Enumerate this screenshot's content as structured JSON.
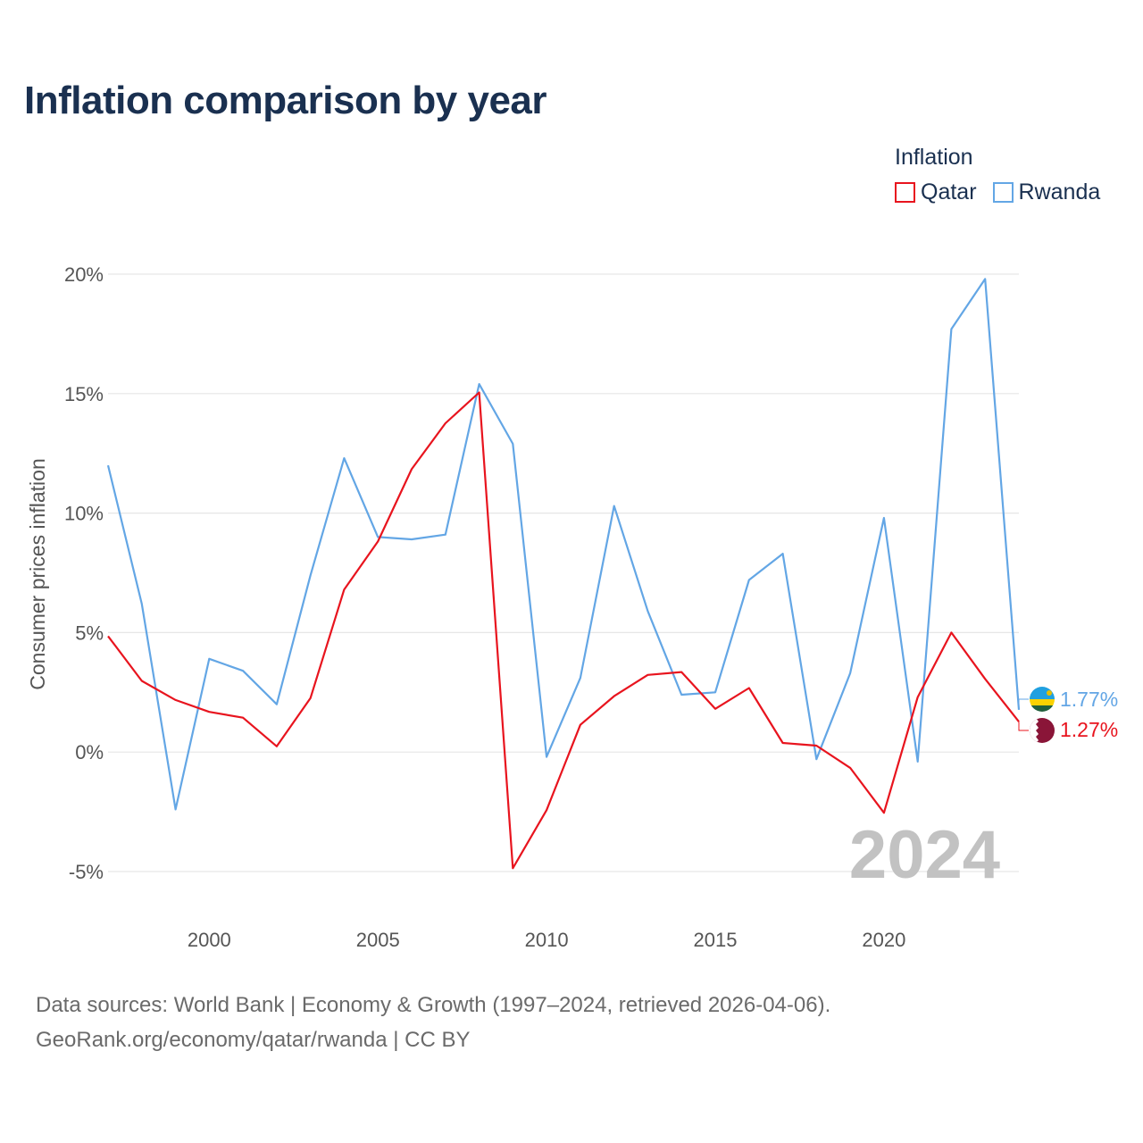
{
  "chart_data": {
    "type": "line",
    "title": "Inflation comparison by year",
    "legend_title": "Inflation",
    "legend_position": "top-right",
    "ylabel": "Consumer prices inflation",
    "xlabel": "",
    "xlim": [
      1997,
      2024
    ],
    "ylim": [
      -5,
      20
    ],
    "y_ticks": [
      20,
      15,
      10,
      5,
      0,
      -5
    ],
    "y_tick_labels": [
      "20%",
      "15%",
      "10%",
      "5%",
      "0%",
      "-5%"
    ],
    "x_ticks": [
      2000,
      2005,
      2010,
      2015,
      2020
    ],
    "x_tick_labels": [
      "2000",
      "2005",
      "2010",
      "2015",
      "2020"
    ],
    "grid": true,
    "highlight_year": "2024",
    "x": [
      1997,
      1998,
      1999,
      2000,
      2001,
      2002,
      2003,
      2004,
      2005,
      2006,
      2007,
      2008,
      2009,
      2010,
      2011,
      2012,
      2013,
      2014,
      2015,
      2016,
      2017,
      2018,
      2019,
      2020,
      2021,
      2022,
      2023,
      2024
    ],
    "series": [
      {
        "name": "Qatar",
        "color": "#e8141e",
        "end_label": "1.27%",
        "flag": "qatar-flag",
        "values": [
          4.85,
          2.98,
          2.18,
          1.68,
          1.44,
          0.24,
          2.26,
          6.8,
          8.81,
          11.84,
          13.76,
          15.05,
          -4.86,
          -2.43,
          1.14,
          2.34,
          3.23,
          3.35,
          1.81,
          2.68,
          0.38,
          0.27,
          -0.66,
          -2.54,
          2.3,
          5.0,
          3.06,
          1.27
        ]
      },
      {
        "name": "Rwanda",
        "color": "#63a6e5",
        "end_label": "1.77%",
        "flag": "rwanda-flag",
        "values": [
          12.0,
          6.2,
          -2.4,
          3.9,
          3.4,
          2.0,
          7.4,
          12.3,
          9.0,
          8.9,
          9.1,
          15.4,
          12.9,
          -0.2,
          3.1,
          10.3,
          5.9,
          2.4,
          2.5,
          7.2,
          8.3,
          -0.3,
          3.3,
          9.8,
          -0.4,
          17.7,
          19.8,
          1.77
        ]
      }
    ]
  },
  "source": {
    "line1": "Data sources: World Bank | Economy & Growth (1997–2024, retrieved 2026-04-06).",
    "line2": "GeoRank.org/economy/qatar/rwanda | CC BY"
  }
}
